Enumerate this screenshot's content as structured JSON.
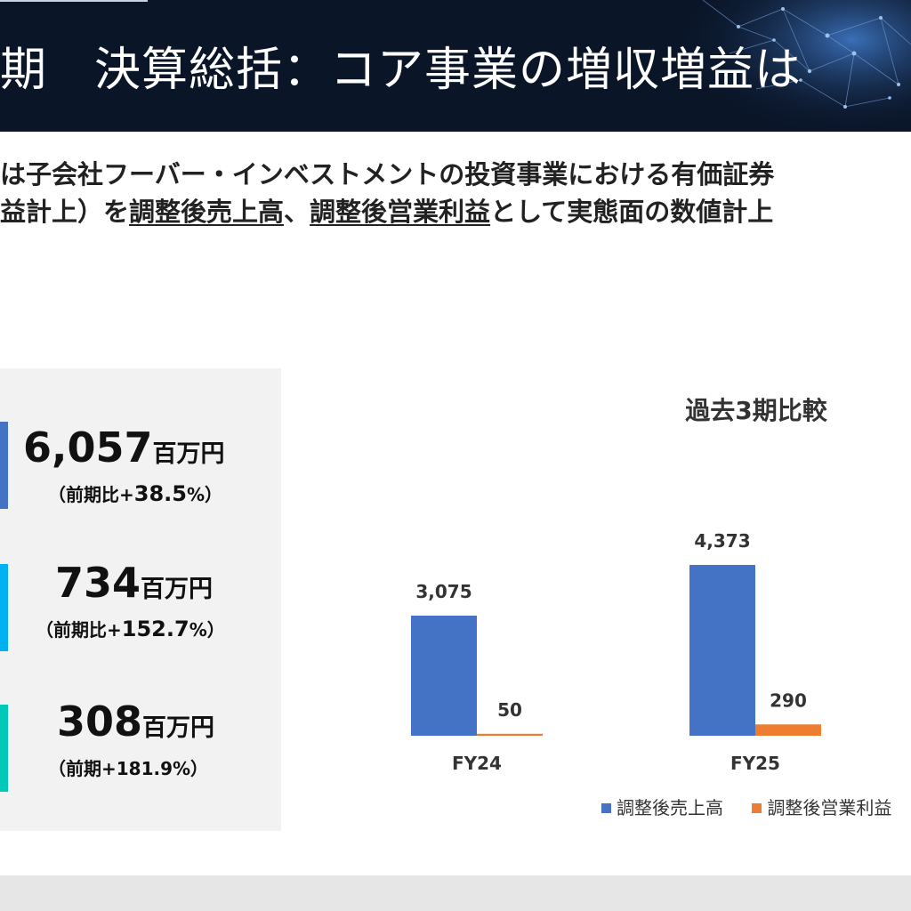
{
  "header": {
    "title": "期　決算総括：コア事業の増収増益は"
  },
  "subtitle": {
    "line1": "は子会社フーバー・インベストメントの投資事業における有価証券",
    "line2_prefix": "益計上）を",
    "line2_link1": "調整後売上高",
    "line2_sep": "、",
    "line2_link2": "調整後営業利益",
    "line2_suffix": "として実態面の数値計上"
  },
  "kpis": [
    {
      "value": "6,057",
      "unit": "百万円",
      "change_prefix": "（前期比+",
      "change_value": "38.5",
      "change_suffix": "%）",
      "color": "#4472c4"
    },
    {
      "value": "734",
      "unit": "百万円",
      "change_prefix": "（前期比+",
      "change_value": "152.7",
      "change_suffix": "%）",
      "color": "#00b0f0"
    },
    {
      "value": "308",
      "unit": "百万円",
      "change_prefix": "（前期+181.9%）",
      "change_value": "",
      "change_suffix": "",
      "color": "#00c9b7"
    }
  ],
  "chart_data": {
    "type": "bar",
    "title": "過去3期比較",
    "categories": [
      "FY24",
      "FY25"
    ],
    "series": [
      {
        "name": "調整後売上高",
        "values": [
          3075,
          4373
        ],
        "labels": [
          "3,075",
          "4,373"
        ],
        "color": "#4472c4"
      },
      {
        "name": "調整後営業利益",
        "values": [
          50,
          290
        ],
        "labels": [
          "50",
          "290"
        ],
        "color": "#ed7d31"
      }
    ],
    "xlabel": "",
    "ylabel": "",
    "grid": false,
    "legend": "bottom"
  }
}
